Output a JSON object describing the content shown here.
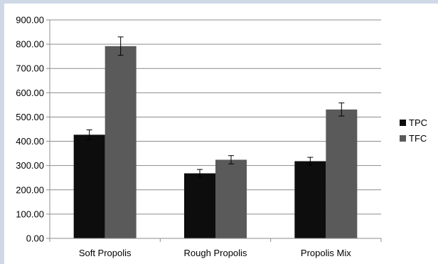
{
  "chart_data": {
    "type": "bar",
    "categories": [
      "Soft Propolis",
      "Rough Propolis",
      "Propolis Mix"
    ],
    "series": [
      {
        "name": "TPC",
        "values": [
          427,
          268,
          318
        ],
        "errors": [
          20,
          16,
          16
        ],
        "color": "#0d0d0d"
      },
      {
        "name": "TFC",
        "values": [
          792,
          324,
          531
        ],
        "errors": [
          38,
          17,
          27
        ],
        "color": "#5a5a5a"
      }
    ],
    "y_ticks": [
      "0.00",
      "100.00",
      "200.00",
      "300.00",
      "400.00",
      "500.00",
      "600.00",
      "700.00",
      "800.00",
      "900.00"
    ],
    "ylim": [
      0,
      900
    ],
    "grid": true,
    "legend_position": "right",
    "title": "",
    "xlabel": "",
    "ylabel": ""
  }
}
